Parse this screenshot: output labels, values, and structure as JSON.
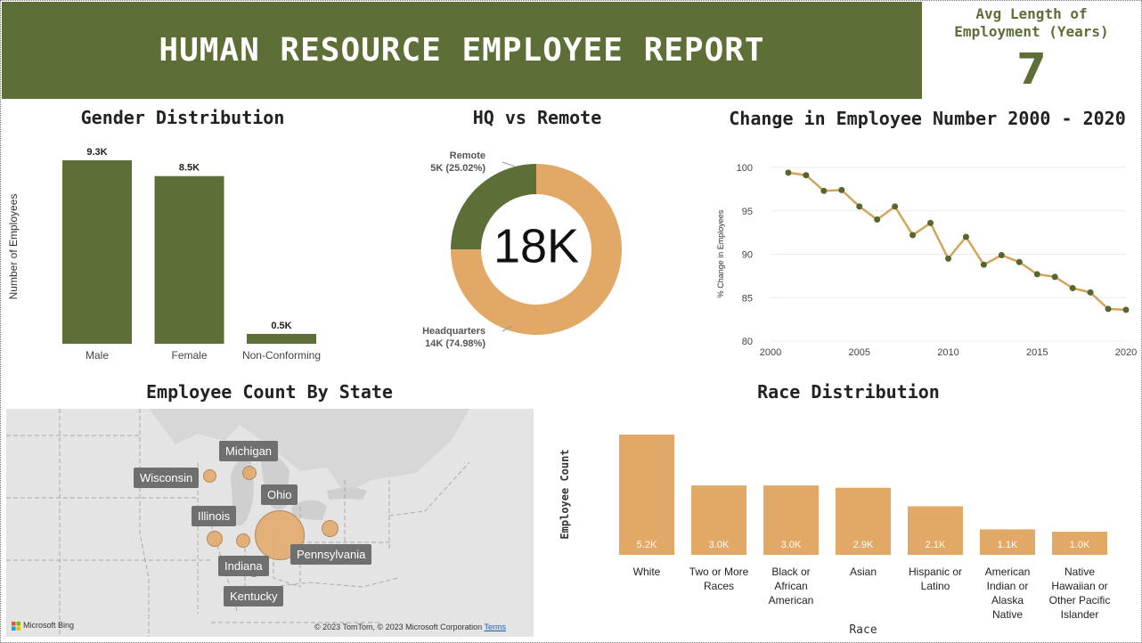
{
  "header": {
    "title": "HUMAN RESOURCE EMPLOYEE REPORT"
  },
  "kpi": {
    "label_line1": "Avg Length of",
    "label_line2": "Employment (Years)",
    "value": "7"
  },
  "colors": {
    "olive": "#5e6e37",
    "tan": "#e2a866",
    "line": "#d4a45c",
    "dot": "#55662f"
  },
  "chart_data": [
    {
      "id": "gender",
      "type": "bar",
      "title": "Gender Distribution",
      "ylabel": "Number of Employees",
      "categories": [
        "Male",
        "Female",
        "Non-Conforming"
      ],
      "values": [
        9.3,
        8.5,
        0.5
      ],
      "data_labels": [
        "9.3K",
        "8.5K",
        "0.5K"
      ],
      "units": "thousands",
      "color": "#5e6e37"
    },
    {
      "id": "hq",
      "type": "pie",
      "title": "HQ vs Remote",
      "center_label": "18K",
      "slices": [
        {
          "name": "Remote",
          "value": 25.02,
          "label": "5K (25.02%)",
          "color": "#5e6e37"
        },
        {
          "name": "Headquarters",
          "value": 74.98,
          "label": "14K (74.98%)",
          "color": "#e2a866"
        }
      ]
    },
    {
      "id": "trend",
      "type": "line",
      "title": "Change in Employee Number 2000 - 2020",
      "ylabel": "% Change in Employees",
      "x": [
        2001,
        2002,
        2003,
        2004,
        2005,
        2006,
        2007,
        2008,
        2009,
        2010,
        2011,
        2012,
        2013,
        2014,
        2015,
        2016,
        2017,
        2018,
        2019,
        2020
      ],
      "y": [
        99.4,
        99.1,
        97.3,
        97.4,
        95.5,
        94.0,
        95.5,
        92.2,
        93.6,
        89.5,
        92.0,
        88.8,
        89.9,
        89.1,
        87.7,
        87.4,
        86.1,
        85.6,
        83.7,
        83.6
      ],
      "xlim": [
        2000,
        2020
      ],
      "ylim": [
        80,
        100
      ],
      "xticks": [
        2000,
        2005,
        2010,
        2015,
        2020
      ],
      "yticks": [
        80,
        85,
        90,
        95,
        100
      ]
    },
    {
      "id": "race",
      "type": "bar",
      "title": "Race Distribution",
      "xlabel": "Race",
      "ylabel": "Employee Count",
      "categories": [
        [
          "White"
        ],
        [
          "Two or More",
          "Races"
        ],
        [
          "Black or",
          "African",
          "American"
        ],
        [
          "Asian"
        ],
        [
          "Hispanic or",
          "Latino"
        ],
        [
          "American",
          "Indian or",
          "Alaska",
          "Native"
        ],
        [
          "Native",
          "Hawaiian or",
          "Other Pacific",
          "Islander"
        ]
      ],
      "values": [
        5.2,
        3.0,
        3.0,
        2.9,
        2.1,
        1.1,
        1.0
      ],
      "data_labels": [
        "5.2K",
        "3.0K",
        "3.0K",
        "2.9K",
        "2.1K",
        "1.1K",
        "1.0K"
      ],
      "units": "thousands",
      "color": "#e2a866"
    }
  ],
  "map": {
    "title": "Employee Count By State",
    "states": [
      "Michigan",
      "Wisconsin",
      "Ohio",
      "Illinois",
      "Pennsylvania",
      "Indiana",
      "Kentucky"
    ],
    "logo_text": "Microsoft Bing",
    "copyright": "© 2023 TomTom, © 2023 Microsoft Corporation",
    "terms": "Terms"
  }
}
